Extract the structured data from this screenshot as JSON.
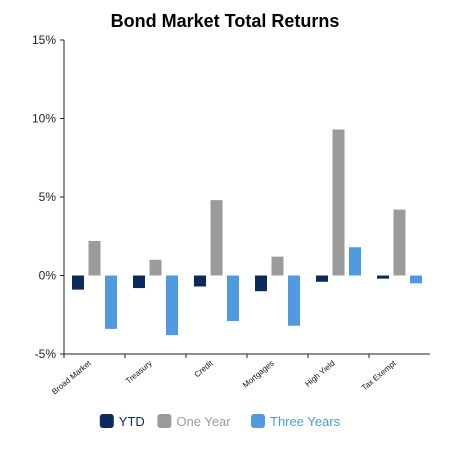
{
  "chart_data": {
    "type": "bar",
    "title": "Bond Market Total Returns",
    "xlabel": "",
    "ylabel": "",
    "ylim": [
      -5,
      15
    ],
    "yticks": [
      -5,
      0,
      5,
      10,
      15
    ],
    "ytick_labels": [
      "-5%",
      "0%",
      "5%",
      "10%",
      "15%"
    ],
    "grid": false,
    "legend_position": "bottom",
    "categories": [
      "Broad Market",
      "Treasury",
      "Credit",
      "Mortgages",
      "High Yield",
      "Tax Exempt"
    ],
    "series": [
      {
        "name": "YTD",
        "color": "#0d2a5c",
        "values": [
          -0.9,
          -0.8,
          -0.7,
          -1.0,
          -0.4,
          -0.2
        ]
      },
      {
        "name": "One Year",
        "color": "#9b9b9b",
        "values": [
          2.2,
          1.0,
          4.8,
          1.2,
          9.3,
          4.2
        ]
      },
      {
        "name": "Three Years",
        "color": "#4f9ae0",
        "values": [
          -3.4,
          -3.8,
          -2.9,
          -3.2,
          1.8,
          -0.5
        ]
      }
    ]
  }
}
